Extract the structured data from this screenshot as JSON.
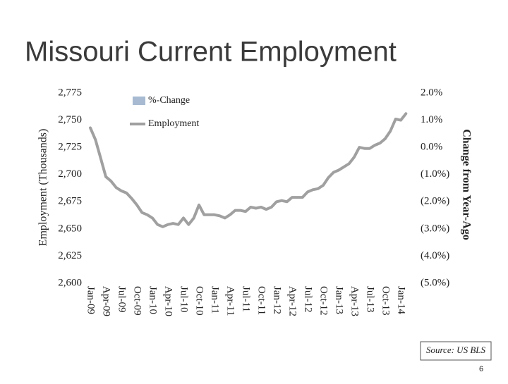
{
  "chart_data": {
    "type": "line",
    "title": "Missouri Current Employment",
    "y_label": "Employment (Thousands)",
    "y2_label": "Change from Year-Ago",
    "source": "Source: US BLS",
    "page_number": "6",
    "categories": [
      "Jan-09",
      null,
      null,
      "Apr-09",
      null,
      null,
      "Jul-09",
      null,
      null,
      "Oct-09",
      null,
      null,
      "Jan-10",
      null,
      null,
      "Apr-10",
      null,
      null,
      "Jul-10",
      null,
      null,
      "Oct-10",
      null,
      null,
      "Jan-11",
      null,
      null,
      "Apr-11",
      null,
      null,
      "Jul-11",
      null,
      null,
      "Oct-11",
      null,
      null,
      "Jan-12",
      null,
      null,
      "Apr-12",
      null,
      null,
      "Jul-12",
      null,
      null,
      "Oct-12",
      null,
      null,
      "Jan-13",
      null,
      null,
      "Apr-13",
      null,
      null,
      "Jul-13",
      null,
      null,
      "Oct-13",
      null,
      null,
      "Jan-14",
      null
    ],
    "series": [
      {
        "name": "%-Change",
        "type": "bar",
        "axis": "y2",
        "color": "#a7bad1",
        "values": [
          null,
          null,
          null,
          null,
          null,
          null,
          null,
          null,
          null,
          null,
          null,
          null,
          null,
          null,
          null,
          null,
          null,
          null,
          null,
          null,
          null,
          null,
          null,
          null,
          null,
          null,
          null,
          null,
          null,
          null,
          null,
          null,
          null,
          null,
          null,
          null,
          null,
          null,
          null,
          null,
          null,
          null,
          null,
          null,
          null,
          null,
          null,
          null,
          null,
          null,
          null,
          null,
          null,
          null,
          null,
          null,
          null,
          null,
          null,
          null,
          null,
          null
        ]
      },
      {
        "name": "Employment",
        "type": "line",
        "color": "#a0a0a0",
        "values": [
          2743,
          2732,
          2715,
          2698,
          2694,
          2688,
          2685,
          2683,
          2678,
          2672,
          2665,
          2663,
          2660,
          2654,
          2652,
          2654,
          2655,
          2654,
          2660,
          2654,
          2660,
          2672,
          2663,
          2663,
          2663,
          2662,
          2660,
          2663,
          2667,
          2667,
          2666,
          2670,
          2669,
          2670,
          2668,
          2670,
          2675,
          2676,
          2675,
          2679,
          2679,
          2679,
          2684,
          2686,
          2687,
          2690,
          2697,
          2702,
          2704,
          2707,
          2710,
          2716,
          2725,
          2724,
          2724,
          2727,
          2729,
          2733,
          2740,
          2751,
          2750,
          2756
        ]
      }
    ],
    "ylim": [
      2600,
      2775
    ],
    "yticks": [
      {
        "value": 2600,
        "label": "2,600"
      },
      {
        "value": 2625,
        "label": "2,625"
      },
      {
        "value": 2650,
        "label": "2,650"
      },
      {
        "value": 2675,
        "label": "2,675"
      },
      {
        "value": 2700,
        "label": "2,700"
      },
      {
        "value": 2725,
        "label": "2,725"
      },
      {
        "value": 2750,
        "label": "2,750"
      },
      {
        "value": 2775,
        "label": "2,775"
      }
    ],
    "y2lim": [
      -5,
      2
    ],
    "y2ticks": [
      {
        "value": -5,
        "label": "(5.0%)"
      },
      {
        "value": -4,
        "label": "(4.0%)"
      },
      {
        "value": -3,
        "label": "(3.0%)"
      },
      {
        "value": -2,
        "label": "(2.0%)"
      },
      {
        "value": -1,
        "label": "(1.0%)"
      },
      {
        "value": 0,
        "label": "0.0%"
      },
      {
        "value": 1,
        "label": "1.0%"
      },
      {
        "value": 2,
        "label": "2.0%"
      }
    ],
    "legend": "upper left",
    "grid": false
  }
}
